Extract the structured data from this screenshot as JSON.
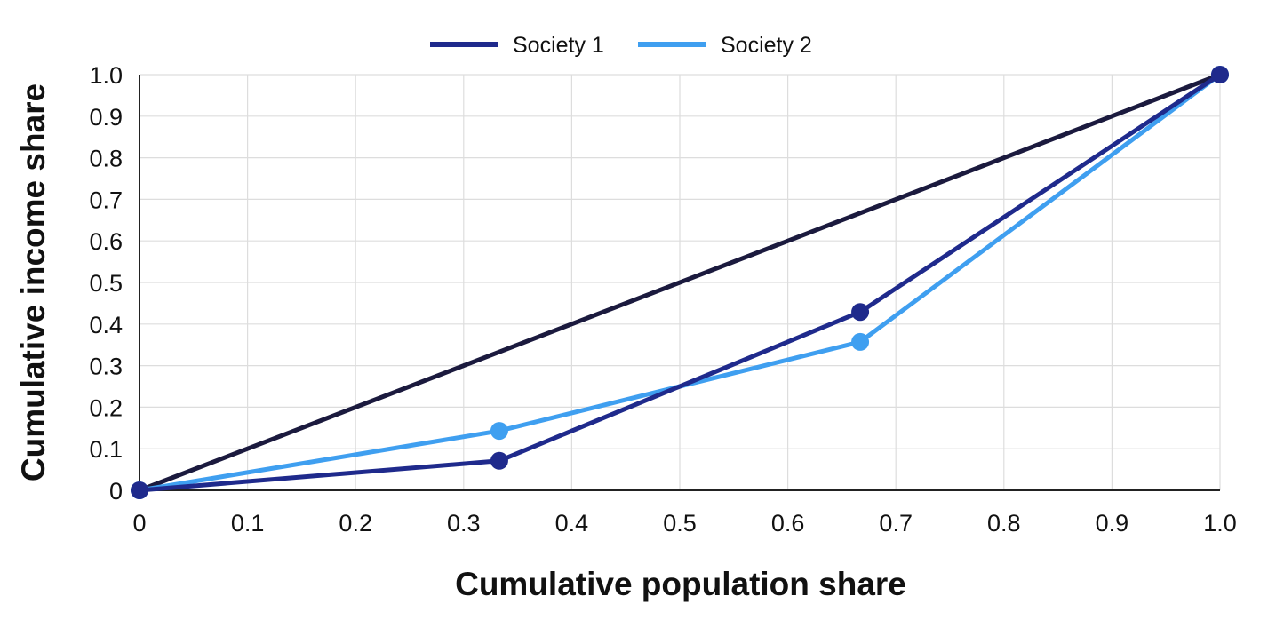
{
  "chart_data": {
    "type": "line",
    "title": "",
    "xlabel": "Cumulative population share",
    "ylabel": "Cumulative income share",
    "xlim": [
      0,
      1.0
    ],
    "ylim": [
      0,
      1.0
    ],
    "grid": true,
    "legend_position": "top-center",
    "x_ticks": [
      "0",
      "0.1",
      "0.2",
      "0.3",
      "0.4",
      "0.5",
      "0.6",
      "0.7",
      "0.8",
      "0.9",
      "1.0"
    ],
    "y_ticks": [
      "0",
      "0.1",
      "0.2",
      "0.3",
      "0.4",
      "0.5",
      "0.6",
      "0.7",
      "0.8",
      "0.9",
      "1.0"
    ],
    "equality_line": {
      "x": [
        0,
        1
      ],
      "y": [
        0,
        1
      ],
      "color": "#1b1a3e"
    },
    "series": [
      {
        "name": "Society 1",
        "color": "#1f2a8c",
        "x": [
          0,
          0.333,
          0.667,
          1.0
        ],
        "y": [
          0,
          0.071,
          0.429,
          1.0
        ]
      },
      {
        "name": "Society 2",
        "color": "#3f9ff0",
        "x": [
          0,
          0.333,
          0.667,
          1.0
        ],
        "y": [
          0,
          0.143,
          0.357,
          1.0
        ]
      }
    ]
  }
}
